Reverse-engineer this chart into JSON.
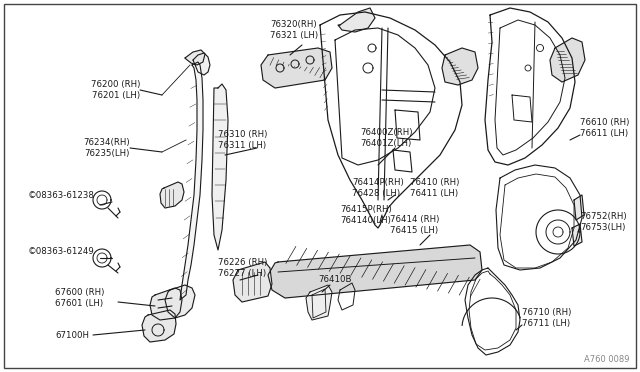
{
  "bg_color": "#ffffff",
  "line_color": "#1a1a1a",
  "border_color": "#333333",
  "diagram_ref": "A760 0089",
  "figsize": [
    6.4,
    3.72
  ],
  "dpi": 100,
  "label_fontsize": 6.2,
  "parts": {
    "76200_76201": "76200（RH）\n76201（LH）",
    "76234_76235": "76234（RH）\n76235（LH）",
    "s61238": "©08363-61238",
    "s61249": "©08363-61249",
    "67600_67601": "67600（RH）\n67601（LH）",
    "67100H": "67100H",
    "76320_76321": "76320（RH）\n76321（LH）",
    "76310_76311": "76310（RH）\n76311（LH）",
    "76400Z_76401Z": "76400Z（RH）\n76401Z（LH）",
    "76414P_76428": "76414P（RH）\n76428（LH）",
    "76415P_764140": "76415P（RH）\n764140（LH）",
    "76226_76227": "76226（RH）\n76227（LH）",
    "76410B": "76410B",
    "76410_76411": "76410（RH）\n76411（LH）",
    "76414_76415": "76414（RH）\n76415（LH）",
    "76610_76611": "76610（RH）\n76611（LH）",
    "76752_76753": "76752（RH）\n76753（LH）",
    "76710_76711": "76710（RH）\n76711（LH）"
  }
}
